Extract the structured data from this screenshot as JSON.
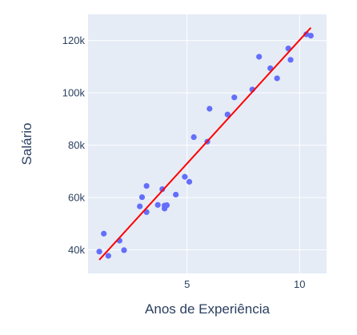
{
  "chart_data": {
    "type": "scatter",
    "xlabel": "Anos de Experiência",
    "ylabel": "Salário",
    "xlim": [
      0.6,
      11.2
    ],
    "ylim": [
      31000,
      130000
    ],
    "xticks": [
      5,
      10
    ],
    "xtick_labels": [
      "5",
      "10"
    ],
    "yticks": [
      40000,
      60000,
      80000,
      100000,
      120000
    ],
    "ytick_labels": [
      "40k",
      "60k",
      "80k",
      "100k",
      "120k"
    ],
    "grid": true,
    "legend": "none",
    "colors": {
      "background": "#e5ecf6",
      "grid": "#ffffff",
      "points": "#636efa",
      "fit_line": "#ff0000",
      "text": "#2a3f5f"
    },
    "series": [
      {
        "type": "scatter",
        "x": [
          1.1,
          1.3,
          1.5,
          2.0,
          2.2,
          2.9,
          3.0,
          3.2,
          3.2,
          3.7,
          3.9,
          4.0,
          4.0,
          4.1,
          4.5,
          4.9,
          5.1,
          5.3,
          5.9,
          6.0,
          6.8,
          7.1,
          7.9,
          8.2,
          8.7,
          9.0,
          9.5,
          9.6,
          10.3,
          10.5
        ],
        "y": [
          39343,
          46205,
          37731,
          43525,
          39891,
          56642,
          60150,
          54445,
          64445,
          57189,
          63218,
          55794,
          56957,
          57081,
          61111,
          67938,
          66029,
          83088,
          81363,
          93940,
          91738,
          98273,
          101302,
          113812,
          109431,
          105582,
          116969,
          112635,
          122391,
          121872
        ]
      },
      {
        "type": "line",
        "x": [
          1.1,
          10.5
        ],
        "y": [
          36200,
          124900
        ]
      }
    ]
  }
}
